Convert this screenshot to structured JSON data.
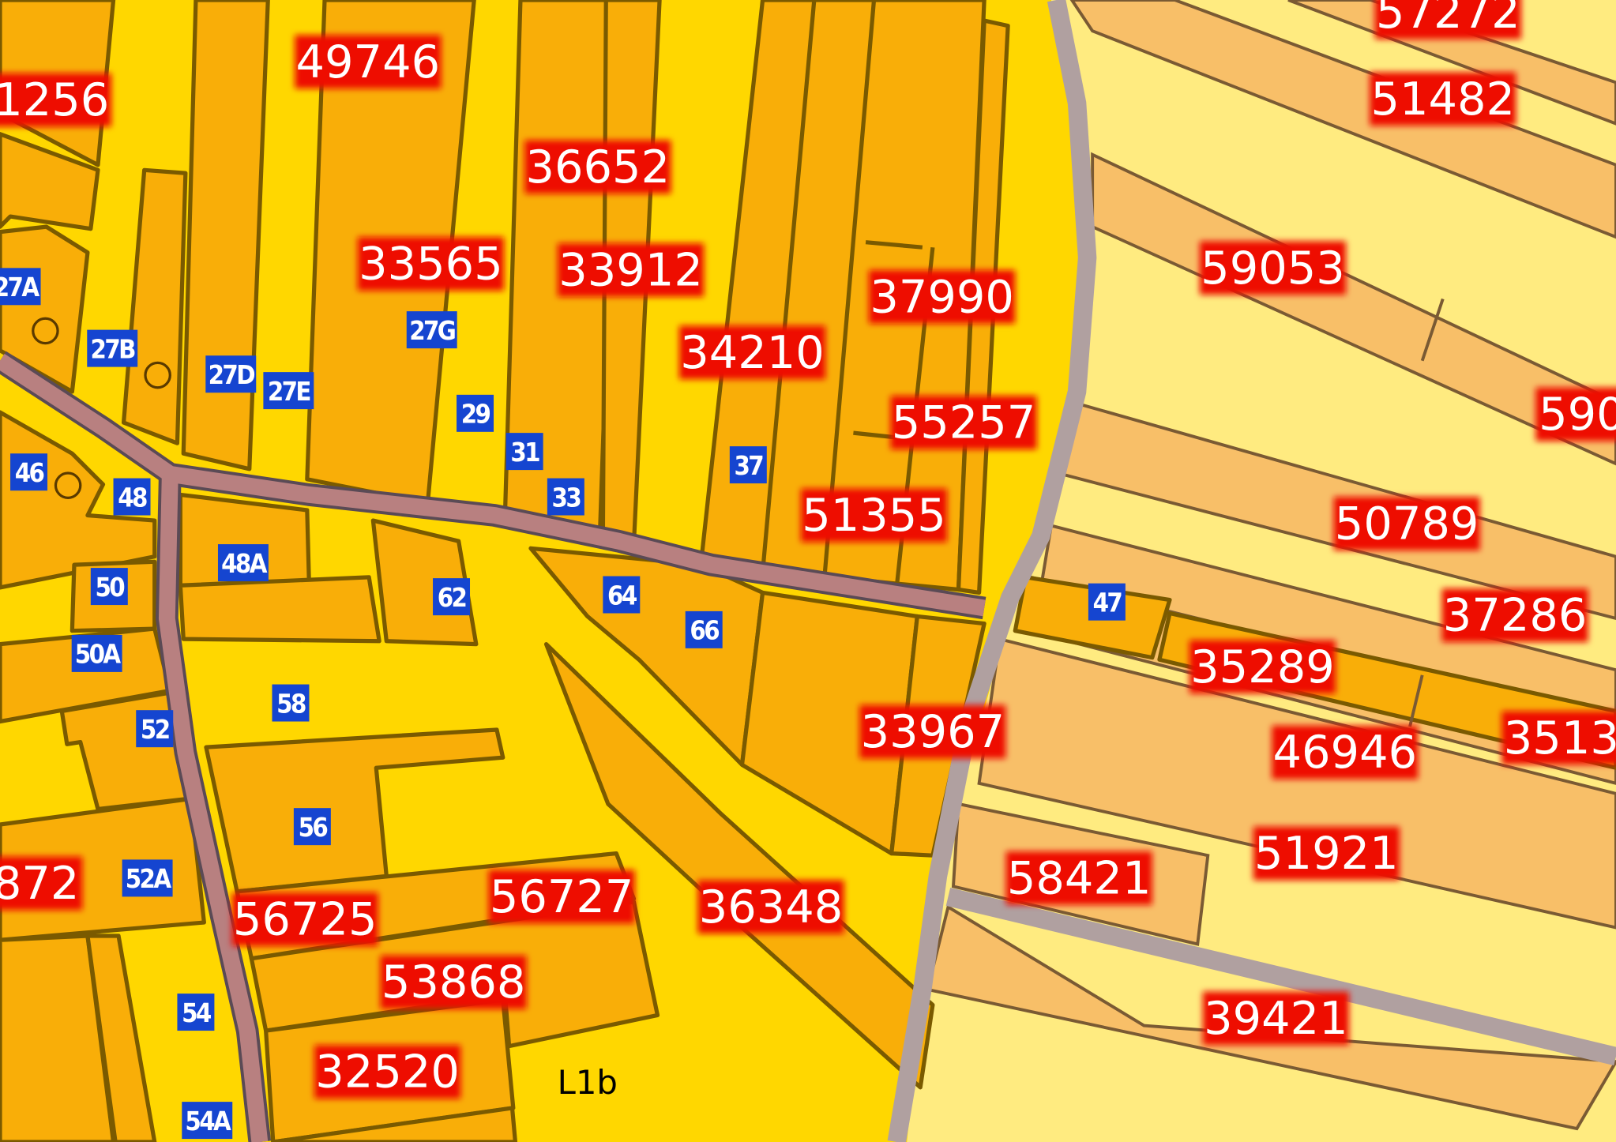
{
  "map": {
    "colors": {
      "zone_yellow": "#FFD700",
      "zone_light_yellow": "#FFEB80",
      "parcel_orange": "#F9AE08",
      "parcel_light_orange": "#F8BF68",
      "road": "#B88080",
      "road_grey": "#B0A0A0",
      "parcel_label_bg": "#EE1100",
      "house_number_bg": "#1545D0"
    },
    "parcel_labels": [
      "1256",
      "49746",
      "36652",
      "33565",
      "33912",
      "37990",
      "34210",
      "55257",
      "51355",
      "57272",
      "51482",
      "59053",
      "590",
      "50789",
      "37286",
      "35289",
      "3513",
      "46946",
      "33967",
      "51921",
      "58421",
      "872",
      "56725",
      "56727",
      "36348",
      "53868",
      "39421",
      "32520"
    ],
    "house_numbers": [
      "27A",
      "27B",
      "27D",
      "27E",
      "27G",
      "29",
      "31",
      "33",
      "37",
      "46",
      "48",
      "48A",
      "50",
      "62",
      "64",
      "66",
      "47",
      "50A",
      "58",
      "52",
      "56",
      "52A",
      "54",
      "54A"
    ],
    "zone_label": "L1b"
  }
}
